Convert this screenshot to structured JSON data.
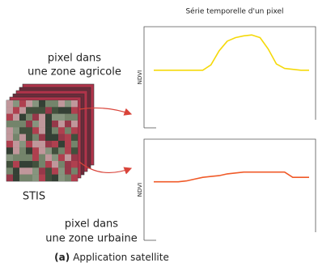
{
  "figure": {
    "title": "Série temporelle d'un pixel",
    "agri_label": [
      "pixel dans",
      "une zone agricole"
    ],
    "stack_label": "STIS",
    "urban_label": [
      "pixel dans",
      "une zone urbaine"
    ],
    "caption": {
      "tag": "(a)",
      "text": "Application satellite"
    }
  },
  "chart_data": [
    {
      "type": "line",
      "ylabel": "NDVI",
      "ylim": [
        0,
        1
      ],
      "series": [
        {
          "color": "#f5d90a",
          "values": [
            0.58,
            0.58,
            0.58,
            0.58,
            0.58,
            0.58,
            0.58,
            0.64,
            0.8,
            0.91,
            0.95,
            0.97,
            0.98,
            0.95,
            0.82,
            0.65,
            0.6,
            0.59,
            0.58,
            0.58
          ]
        }
      ]
    },
    {
      "type": "line",
      "ylabel": "NDVI",
      "ylim": [
        0,
        1
      ],
      "series": [
        {
          "color": "#f05a28",
          "values": [
            0.59,
            0.59,
            0.59,
            0.59,
            0.6,
            0.62,
            0.64,
            0.65,
            0.66,
            0.68,
            0.69,
            0.7,
            0.7,
            0.7,
            0.7,
            0.7,
            0.7,
            0.64,
            0.64,
            0.64
          ]
        }
      ]
    }
  ]
}
